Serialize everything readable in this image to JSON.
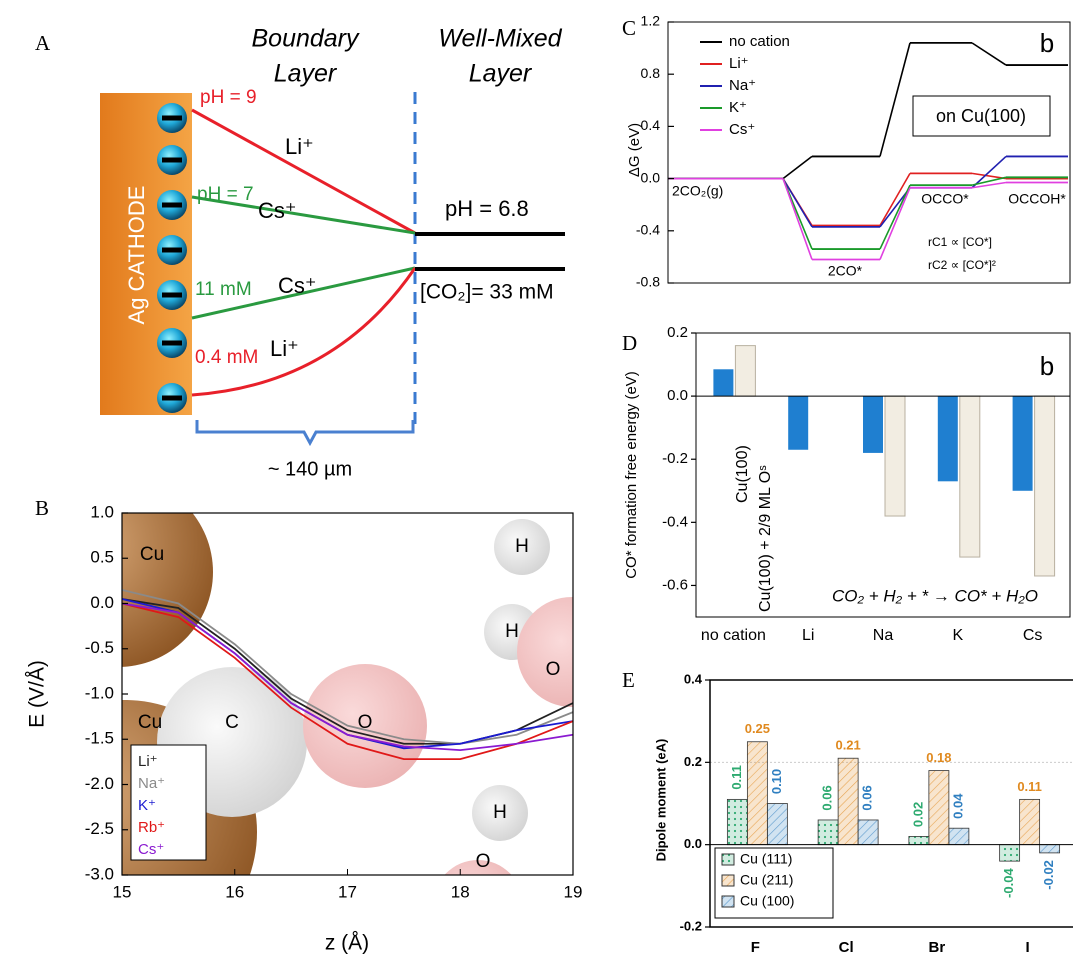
{
  "panel_labels": [
    "A",
    "B",
    "C",
    "D",
    "E"
  ],
  "diagram": {
    "headers": [
      "Boundary",
      "Layer",
      "Well-Mixed",
      "Layer"
    ],
    "cathode": "Ag CATHODE",
    "labels": [
      "pH = 9",
      "Li⁺",
      "pH = 7",
      "Cs⁺",
      "pH = 6.8",
      "11 mM",
      "Cs⁺",
      "[CO₂]= 33 mM",
      "0.4 mM",
      "Li⁺"
    ],
    "distance": "~ 140 µm"
  },
  "chart_data": [
    {
      "type": "line",
      "xlabel": "z (Å)",
      "ylabel": "E (V/Å)",
      "xlim": [
        15,
        19
      ],
      "ylim": [
        -3,
        1
      ],
      "xticks": [
        15,
        16,
        17,
        18,
        19
      ],
      "yticks": [
        {
          "value": 1,
          "label": "1.0"
        },
        0.5,
        {
          "value": 0,
          "label": "0.0"
        },
        -0.5,
        {
          "value": -1,
          "label": "-1.0"
        },
        -1.5,
        {
          "value": -2,
          "label": "-2.0"
        },
        -2.5,
        {
          "value": -3,
          "label": "-3.0"
        }
      ],
      "atoms": [
        "Cu",
        "Cu",
        "C",
        "O",
        "H",
        "H",
        "O",
        "H",
        "O"
      ],
      "x": [
        15,
        15.5,
        16,
        16.5,
        17,
        17.5,
        18,
        18.5,
        19
      ],
      "series": [
        {
          "name": "Li⁺",
          "color": "#222222",
          "values": [
            0.05,
            -0.05,
            -0.5,
            -1.05,
            -1.4,
            -1.55,
            -1.55,
            -1.4,
            -1.1
          ]
        },
        {
          "name": "Na⁺",
          "color": "#8a8a8a",
          "values": [
            0.15,
            0.0,
            -0.45,
            -1.0,
            -1.35,
            -1.5,
            -1.55,
            -1.45,
            -1.2
          ]
        },
        {
          "name": "K⁺",
          "color": "#1a1ad0",
          "values": [
            0.05,
            -0.1,
            -0.55,
            -1.1,
            -1.45,
            -1.6,
            -1.55,
            -1.4,
            -1.3
          ]
        },
        {
          "name": "Rb⁺",
          "color": "#e01818",
          "values": [
            0.0,
            -0.15,
            -0.6,
            -1.15,
            -1.55,
            -1.72,
            -1.72,
            -1.55,
            -1.3
          ]
        },
        {
          "name": "Cs⁺",
          "color": "#8a1ad0",
          "values": [
            0.0,
            -0.1,
            -0.55,
            -1.1,
            -1.45,
            -1.58,
            -1.62,
            -1.55,
            -1.45
          ]
        }
      ]
    },
    {
      "type": "energy-steps",
      "ylabel": "ΔG (eV)",
      "ylim": [
        -0.8,
        1.2
      ],
      "yticks": [
        -0.8,
        -0.4,
        {
          "value": 0,
          "label": "0.0"
        },
        0.4,
        0.8,
        1.2
      ],
      "categories": [
        "2CO₂(g)",
        "2CO*",
        "OCCO*",
        "OCCOH*"
      ],
      "annotation": "b",
      "box_label": "on Cu(100)",
      "rate_laws": [
        "rC1 ∝ [CO*]",
        "rC2 ∝ [CO*]²"
      ],
      "series": [
        {
          "name": "no cation",
          "color": "#000000",
          "values": [
            0,
            0.17,
            1.04,
            0.87
          ]
        },
        {
          "name": "Li⁺",
          "color": "#e02020",
          "values": [
            0,
            -0.36,
            0.04,
            0.0
          ]
        },
        {
          "name": "Na⁺",
          "color": "#2020b0",
          "values": [
            0,
            -0.37,
            -0.07,
            0.17
          ]
        },
        {
          "name": "K⁺",
          "color": "#1a9a2a",
          "values": [
            0,
            -0.54,
            -0.05,
            0.01
          ]
        },
        {
          "name": "Cs⁺",
          "color": "#e040e0",
          "values": [
            0,
            -0.62,
            -0.07,
            -0.03
          ]
        }
      ]
    },
    {
      "type": "bar",
      "ylabel": "CO* formation free energy (eV)",
      "ylim": [
        -0.7,
        0.2
      ],
      "yticks": [
        0.2,
        {
          "value": 0,
          "label": "0.0"
        },
        -0.2,
        -0.4,
        -0.6
      ],
      "categories": [
        "no cation",
        "Li",
        "Na",
        "K",
        "Cs"
      ],
      "annotation": "b",
      "equation": "CO₂ + H₂ + * → CO* + H₂O",
      "series": [
        {
          "name": "Cu(100)",
          "color": "#1f7fd0",
          "values": [
            0.085,
            -0.17,
            -0.18,
            -0.27,
            -0.3
          ]
        },
        {
          "name": "Cu(100) + 2/9 ML Oˢ",
          "color": "#f2ede2",
          "values": [
            0.16,
            null,
            -0.38,
            -0.51,
            -0.57
          ]
        }
      ]
    },
    {
      "type": "bar",
      "ylabel": "Dipole moment (eA)",
      "ylim": [
        -0.2,
        0.4
      ],
      "yticks": [
        0.4,
        0.2,
        {
          "value": 0,
          "label": "0.0"
        },
        -0.2
      ],
      "categories": [
        "F",
        "Cl",
        "Br",
        "I"
      ],
      "series": [
        {
          "name": "Cu (111)",
          "color": "#2eaa70",
          "values": [
            0.11,
            0.06,
            0.02,
            -0.04
          ],
          "value_labels": [
            "0.11",
            "0.06",
            "0.02",
            "-0.04"
          ]
        },
        {
          "name": "Cu (211)",
          "color": "#e08a20",
          "values": [
            0.25,
            0.21,
            0.18,
            0.11
          ],
          "value_labels": [
            "0.25",
            "0.21",
            "0.18",
            "0.11"
          ]
        },
        {
          "name": "Cu (100)",
          "color": "#2f7fc0",
          "values": [
            0.1,
            0.06,
            0.04,
            -0.02
          ],
          "value_labels": [
            "0.10",
            "0.06",
            "0.04",
            "-0.02"
          ]
        }
      ]
    }
  ]
}
